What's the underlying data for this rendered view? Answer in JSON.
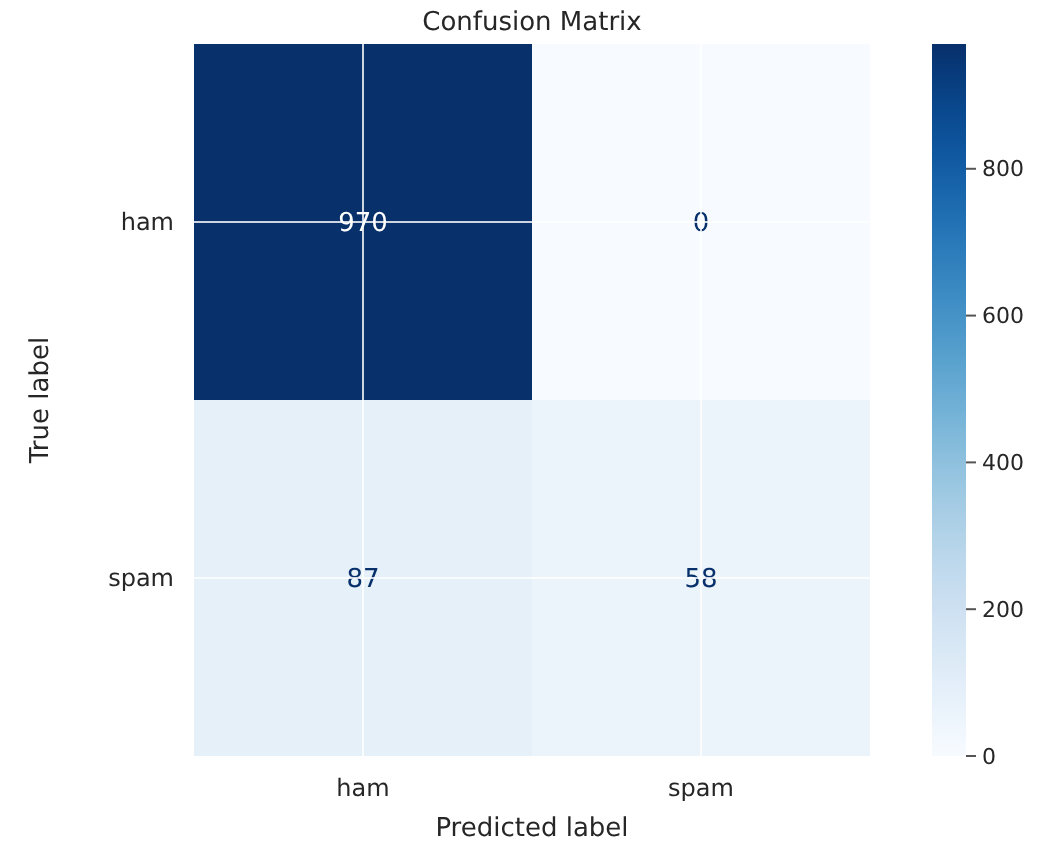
{
  "chart_data": {
    "type": "heatmap",
    "title": "Confusion Matrix",
    "xlabel": "Predicted label",
    "ylabel": "True label",
    "categories": [
      "ham",
      "spam"
    ],
    "y_categories": [
      "ham",
      "spam"
    ],
    "cells": [
      [
        970,
        0
      ],
      [
        87,
        58
      ]
    ],
    "clim": [
      0,
      970
    ],
    "cticks": [
      0,
      200,
      400,
      600,
      800
    ],
    "data_labels": true,
    "grid": true
  }
}
